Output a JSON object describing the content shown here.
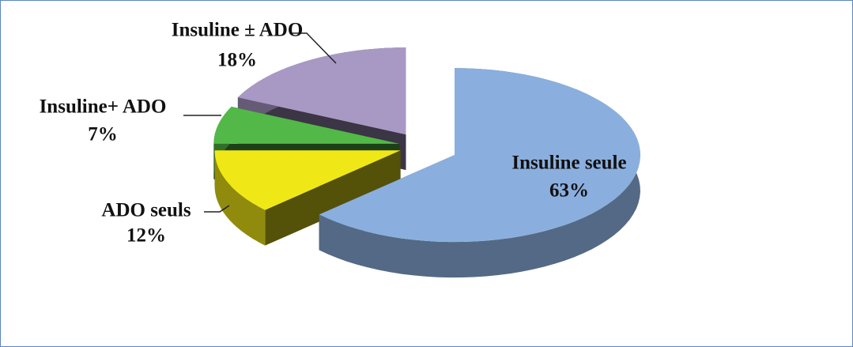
{
  "chart_data": {
    "type": "pie",
    "categories": [
      "Insuline seule",
      "ADO seuls",
      "Insuline+ ADO",
      "Insuline ± ADO"
    ],
    "values": [
      63,
      12,
      7,
      18
    ],
    "value_labels": [
      "63%",
      "12%",
      "7%",
      "18%"
    ],
    "colors": [
      "#8aafde",
      "#f0e816",
      "#52b847",
      "#a898c4"
    ]
  }
}
